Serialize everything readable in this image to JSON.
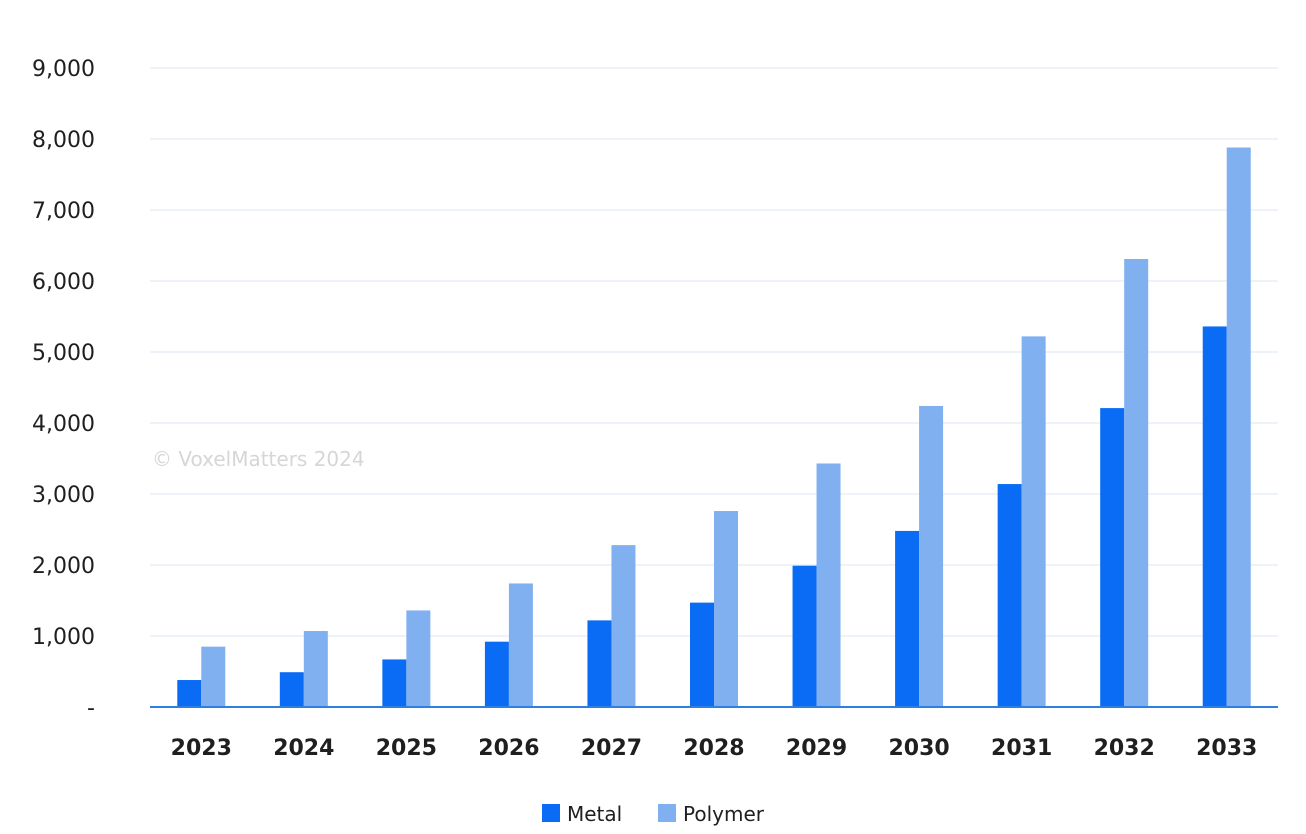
{
  "watermark": "© VoxelMatters 2024",
  "chart_data": {
    "type": "bar",
    "title": "",
    "xlabel": "",
    "ylabel": "",
    "categories": [
      "2023",
      "2024",
      "2025",
      "2026",
      "2027",
      "2028",
      "2029",
      "2030",
      "2031",
      "2032",
      "2033"
    ],
    "series": [
      {
        "name": "Metal",
        "color": "#0a6cf5",
        "values": [
          380,
          490,
          670,
          920,
          1220,
          1470,
          1990,
          2480,
          3140,
          4210,
          5360
        ]
      },
      {
        "name": "Polymer",
        "color": "#80b0f0",
        "values": [
          850,
          1070,
          1360,
          1740,
          2280,
          2760,
          3430,
          4240,
          5220,
          6310,
          7880
        ]
      }
    ],
    "ylim": [
      0,
      9000
    ],
    "yticks": [
      0,
      1000,
      2000,
      3000,
      4000,
      5000,
      6000,
      7000,
      8000,
      9000
    ],
    "ytick_labels": [
      "-",
      "1,000",
      "2,000",
      "3,000",
      "4,000",
      "5,000",
      "6,000",
      "7,000",
      "8,000",
      "9,000"
    ],
    "grid": true,
    "legend_position": "bottom-center"
  }
}
